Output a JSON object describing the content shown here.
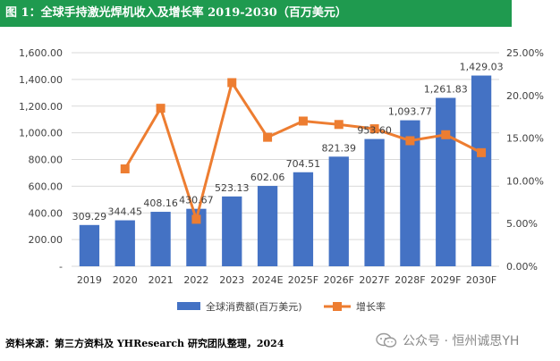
{
  "title": "图 1：全球手持激光焊机收入及增长率 2019-2030（百万美元）",
  "source": "资料来源：第三方资料及 YHResearch 研究团队整理，2024",
  "watermark": "公众号 · 恒州诚思YH",
  "watermark_icon": "wechat-icon",
  "chart_data": {
    "type": "bar",
    "categories": [
      "2019",
      "2020",
      "2021",
      "2022",
      "2023",
      "2024E",
      "2025F",
      "2026F",
      "2027F",
      "2028F",
      "2029F",
      "2030F"
    ],
    "series": [
      {
        "name": "全球消费额(百万美元)",
        "type": "bar",
        "axis": "left",
        "color": "#4472c4",
        "values": [
          309.29,
          344.45,
          408.16,
          430.67,
          523.13,
          602.06,
          704.51,
          821.39,
          953.6,
          1093.77,
          1261.83,
          1429.03
        ],
        "labels": [
          "309.29",
          "344.45",
          "408.16",
          "430.67",
          "523.13",
          "602.06",
          "704.51",
          "821.39",
          "953.60",
          "1,093.77",
          "1,261.83",
          "1,429.03"
        ]
      },
      {
        "name": "增长率",
        "type": "line",
        "axis": "right",
        "color": "#ed7d31",
        "values": [
          null,
          11.4,
          18.5,
          5.5,
          21.5,
          15.1,
          17.0,
          16.6,
          16.1,
          14.7,
          15.4,
          13.3
        ]
      }
    ],
    "y_left": {
      "range": [
        0,
        1600
      ],
      "ticks": [
        0,
        200,
        400,
        600,
        800,
        1000,
        1200,
        1400,
        1600
      ],
      "tick_labels": [
        "-",
        "200.00",
        "400.00",
        "600.00",
        "800.00",
        "1,000.00",
        "1,200.00",
        "1,400.00",
        "1,600.00"
      ]
    },
    "y_right": {
      "range": [
        0,
        25
      ],
      "ticks": [
        0,
        5,
        10,
        15,
        20,
        25
      ],
      "tick_labels": [
        "0.00%",
        "5.00%",
        "10.00%",
        "15.00%",
        "20.00%",
        "25.00%"
      ]
    },
    "grid": true,
    "legend_position": "bottom"
  }
}
